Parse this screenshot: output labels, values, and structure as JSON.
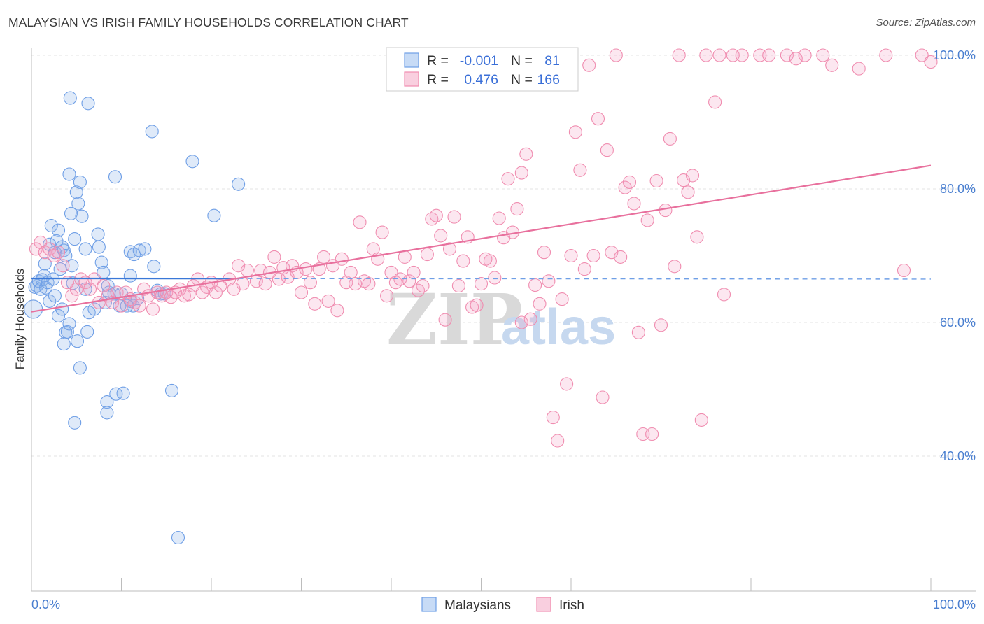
{
  "title": "MALAYSIAN VS IRISH FAMILY HOUSEHOLDS CORRELATION CHART",
  "source": "Source: ZipAtlas.com",
  "watermark": {
    "zip": "ZIP",
    "atlas": "atlas"
  },
  "legend": {
    "rows": [
      {
        "r_label": "R =",
        "r_value": "-0.001",
        "n_label": "N =",
        "n_value": "81",
        "color": "#6f9fe6"
      },
      {
        "r_label": "R =",
        "r_value": "0.476",
        "n_label": "N =",
        "n_value": "166",
        "color": "#f08db0"
      }
    ]
  },
  "bottom_legend": [
    {
      "label": "Malaysians",
      "color": "#6f9fe6"
    },
    {
      "label": "Irish",
      "color": "#f08db0"
    }
  ],
  "chart_data": {
    "type": "scatter",
    "title": "MALAYSIAN VS IRISH FAMILY HOUSEHOLDS CORRELATION CHART",
    "xlabel": "",
    "ylabel": "Family Households",
    "xlim": [
      0,
      100
    ],
    "ylim": [
      20,
      102
    ],
    "x_tick_labels": [
      "0.0%",
      "100.0%"
    ],
    "y_ticks": [
      40,
      60,
      80,
      100
    ],
    "y_tick_labels": [
      "40.0%",
      "60.0%",
      "80.0%",
      "100.0%"
    ],
    "grid": true,
    "legend_position": "top-center",
    "series": [
      {
        "name": "Malaysians",
        "color": "#6f9fe6",
        "trend": {
          "x0": 0,
          "y0": 66.6,
          "x1": 100,
          "y1": 66.5,
          "solid_until": 23
        },
        "points": [
          [
            0.2,
            62
          ],
          [
            0.4,
            65.3
          ],
          [
            0.6,
            65.5
          ],
          [
            0.8,
            66.2
          ],
          [
            1,
            65
          ],
          [
            1.2,
            66.4
          ],
          [
            1.4,
            67
          ],
          [
            1.6,
            65.2
          ],
          [
            1.8,
            66
          ],
          [
            2,
            63.2
          ],
          [
            1.5,
            68.8
          ],
          [
            2,
            71.7
          ],
          [
            2.2,
            74.5
          ],
          [
            2.6,
            70.5
          ],
          [
            3,
            73.8
          ],
          [
            2.8,
            72.2
          ],
          [
            3.4,
            71.3
          ],
          [
            3.2,
            68
          ],
          [
            3.6,
            70.8
          ],
          [
            3.8,
            70
          ],
          [
            2.4,
            66.5
          ],
          [
            2.6,
            64
          ],
          [
            3,
            61
          ],
          [
            3.4,
            62
          ],
          [
            3.8,
            58.5
          ],
          [
            3.6,
            56.8
          ],
          [
            4,
            58.6
          ],
          [
            4.2,
            59.8
          ],
          [
            4.5,
            68.5
          ],
          [
            4.6,
            65.9
          ],
          [
            4.8,
            72.5
          ],
          [
            4.2,
            82.2
          ],
          [
            4.4,
            76.3
          ],
          [
            5,
            79.5
          ],
          [
            5.4,
            81
          ],
          [
            5.2,
            77.8
          ],
          [
            5.6,
            75.9
          ],
          [
            6,
            65
          ],
          [
            6.4,
            61.5
          ],
          [
            5.4,
            53.2
          ],
          [
            4.8,
            45
          ],
          [
            5.1,
            57.2
          ],
          [
            4.3,
            93.6
          ],
          [
            6.3,
            92.8
          ],
          [
            6,
            71
          ],
          [
            7.4,
            73.2
          ],
          [
            7.5,
            71.3
          ],
          [
            7.8,
            69
          ],
          [
            8,
            67.5
          ],
          [
            8.2,
            63
          ],
          [
            8.5,
            65.5
          ],
          [
            8.6,
            64.5
          ],
          [
            8.4,
            48.1
          ],
          [
            8.4,
            46.5
          ],
          [
            9.2,
            64.3
          ],
          [
            9.8,
            62.5
          ],
          [
            10,
            64.3
          ],
          [
            11,
            63.2
          ],
          [
            11.3,
            62.5
          ],
          [
            9.4,
            49.3
          ],
          [
            10.2,
            49.4
          ],
          [
            11,
            70.6
          ],
          [
            11,
            67
          ],
          [
            11.4,
            70.2
          ],
          [
            12,
            70.8
          ],
          [
            12.6,
            71
          ],
          [
            13.6,
            68.4
          ],
          [
            14,
            64.8
          ],
          [
            14.4,
            64.3
          ],
          [
            13.4,
            88.6
          ],
          [
            9.3,
            81.8
          ],
          [
            14.8,
            64.3
          ],
          [
            15.6,
            49.8
          ],
          [
            16.3,
            27.8
          ],
          [
            17.9,
            84.1
          ],
          [
            20.3,
            76
          ],
          [
            23,
            80.7
          ],
          [
            10.6,
            62.5
          ],
          [
            11.8,
            63.6
          ],
          [
            7,
            62
          ],
          [
            6.2,
            58.6
          ]
        ]
      },
      {
        "name": "Irish",
        "color": "#f08db0",
        "trend": {
          "x0": 0,
          "y0": 61.6,
          "x1": 100,
          "y1": 83.5
        },
        "points": [
          [
            0.5,
            71
          ],
          [
            1,
            72
          ],
          [
            1.5,
            70.5
          ],
          [
            2,
            71
          ],
          [
            2.5,
            70
          ],
          [
            3,
            70.5
          ],
          [
            3.5,
            68.5
          ],
          [
            4,
            66
          ],
          [
            4.5,
            64
          ],
          [
            5,
            65
          ],
          [
            5.5,
            66.5
          ],
          [
            6,
            66
          ],
          [
            6.5,
            65
          ],
          [
            7,
            66.5
          ],
          [
            7.5,
            63
          ],
          [
            8,
            65.5
          ],
          [
            8.5,
            64
          ],
          [
            9,
            63
          ],
          [
            9.5,
            64.5
          ],
          [
            10,
            62.5
          ],
          [
            10.5,
            64.5
          ],
          [
            11,
            63.5
          ],
          [
            11.5,
            63
          ],
          [
            12,
            62.5
          ],
          [
            12.5,
            65
          ],
          [
            13,
            64
          ],
          [
            13.5,
            62
          ],
          [
            14,
            64.5
          ],
          [
            14.5,
            64
          ],
          [
            15,
            64.5
          ],
          [
            15.5,
            63.8
          ],
          [
            16,
            64.5
          ],
          [
            16.5,
            65
          ],
          [
            17,
            64
          ],
          [
            17.5,
            64.2
          ],
          [
            18,
            65.5
          ],
          [
            18.5,
            66.5
          ],
          [
            19,
            64.5
          ],
          [
            19.5,
            65.3
          ],
          [
            20,
            66
          ],
          [
            20.5,
            64.5
          ],
          [
            21,
            65.5
          ],
          [
            22,
            66.5
          ],
          [
            22.5,
            65
          ],
          [
            23,
            68.5
          ],
          [
            23.5,
            65.8
          ],
          [
            24,
            67.8
          ],
          [
            25,
            66.2
          ],
          [
            25.5,
            67.8
          ],
          [
            26,
            65.8
          ],
          [
            26.5,
            67.5
          ],
          [
            27,
            69.8
          ],
          [
            27.5,
            66.5
          ],
          [
            28,
            68.2
          ],
          [
            28.5,
            66.8
          ],
          [
            29,
            68.5
          ],
          [
            29.5,
            67.5
          ],
          [
            30,
            64.5
          ],
          [
            30.5,
            68
          ],
          [
            31,
            66
          ],
          [
            31.5,
            62.8
          ],
          [
            32,
            68
          ],
          [
            32.5,
            69.8
          ],
          [
            33,
            63.2
          ],
          [
            33.5,
            68.5
          ],
          [
            34,
            61.8
          ],
          [
            34.5,
            69.5
          ],
          [
            35,
            66
          ],
          [
            35.5,
            67.5
          ],
          [
            36,
            65.8
          ],
          [
            36.5,
            75
          ],
          [
            37,
            66.2
          ],
          [
            37.5,
            65.8
          ],
          [
            38,
            71
          ],
          [
            38.5,
            69.5
          ],
          [
            39,
            73.5
          ],
          [
            39.5,
            64
          ],
          [
            40,
            67.5
          ],
          [
            40.5,
            66
          ],
          [
            41,
            66.5
          ],
          [
            41.5,
            69.8
          ],
          [
            42,
            66.2
          ],
          [
            42.5,
            67.5
          ],
          [
            43,
            64.8
          ],
          [
            43.5,
            65.5
          ],
          [
            44,
            70.2
          ],
          [
            44.5,
            75.5
          ],
          [
            45,
            76
          ],
          [
            45.5,
            73
          ],
          [
            46,
            60.4
          ],
          [
            46.5,
            71
          ],
          [
            47,
            75.8
          ],
          [
            47.5,
            65.5
          ],
          [
            48,
            69.2
          ],
          [
            48.5,
            72.8
          ],
          [
            49,
            62.3
          ],
          [
            49.5,
            62.6
          ],
          [
            50,
            65.8
          ],
          [
            51,
            69.2
          ],
          [
            51.5,
            66.7
          ],
          [
            52,
            75.6
          ],
          [
            52.5,
            72.7
          ],
          [
            53,
            81.5
          ],
          [
            53.5,
            73.5
          ],
          [
            54,
            77
          ],
          [
            54.5,
            82.4
          ],
          [
            55,
            85.2
          ],
          [
            55.5,
            60.5
          ],
          [
            56,
            65.6
          ],
          [
            56.5,
            62.8
          ],
          [
            57,
            70.5
          ],
          [
            57.5,
            66.2
          ],
          [
            58,
            45.8
          ],
          [
            58.5,
            42.3
          ],
          [
            59,
            63.5
          ],
          [
            59.5,
            50.8
          ],
          [
            60,
            70
          ],
          [
            60.5,
            88.5
          ],
          [
            61,
            82.8
          ],
          [
            61.5,
            68
          ],
          [
            62,
            98.5
          ],
          [
            62.5,
            70
          ],
          [
            63,
            90.5
          ],
          [
            63.5,
            48.8
          ],
          [
            64,
            85.8
          ],
          [
            64.5,
            70.5
          ],
          [
            65,
            100
          ],
          [
            65.5,
            69.8
          ],
          [
            66,
            80.2
          ],
          [
            66.5,
            81
          ],
          [
            67,
            77.8
          ],
          [
            67.5,
            58.5
          ],
          [
            68,
            43.3
          ],
          [
            68.5,
            75.3
          ],
          [
            69,
            43.3
          ],
          [
            69.5,
            81.2
          ],
          [
            70,
            59.6
          ],
          [
            70.5,
            76.8
          ],
          [
            71,
            87.5
          ],
          [
            71.5,
            68.4
          ],
          [
            72,
            100
          ],
          [
            72.5,
            81.3
          ],
          [
            73,
            79.5
          ],
          [
            73.5,
            82
          ],
          [
            74,
            72.8
          ],
          [
            74.5,
            45.4
          ],
          [
            75,
            100
          ],
          [
            76,
            93
          ],
          [
            76.5,
            100
          ],
          [
            78,
            100
          ],
          [
            79,
            100
          ],
          [
            81,
            100
          ],
          [
            82,
            100
          ],
          [
            84,
            100
          ],
          [
            85,
            99.5
          ],
          [
            86,
            100
          ],
          [
            88,
            100
          ],
          [
            89,
            98.5
          ],
          [
            92,
            98
          ],
          [
            95,
            100
          ],
          [
            97,
            67.8
          ],
          [
            99,
            100
          ],
          [
            100,
            99
          ],
          [
            77,
            64.2
          ],
          [
            54.5,
            60
          ],
          [
            50.5,
            69.5
          ]
        ]
      }
    ]
  }
}
